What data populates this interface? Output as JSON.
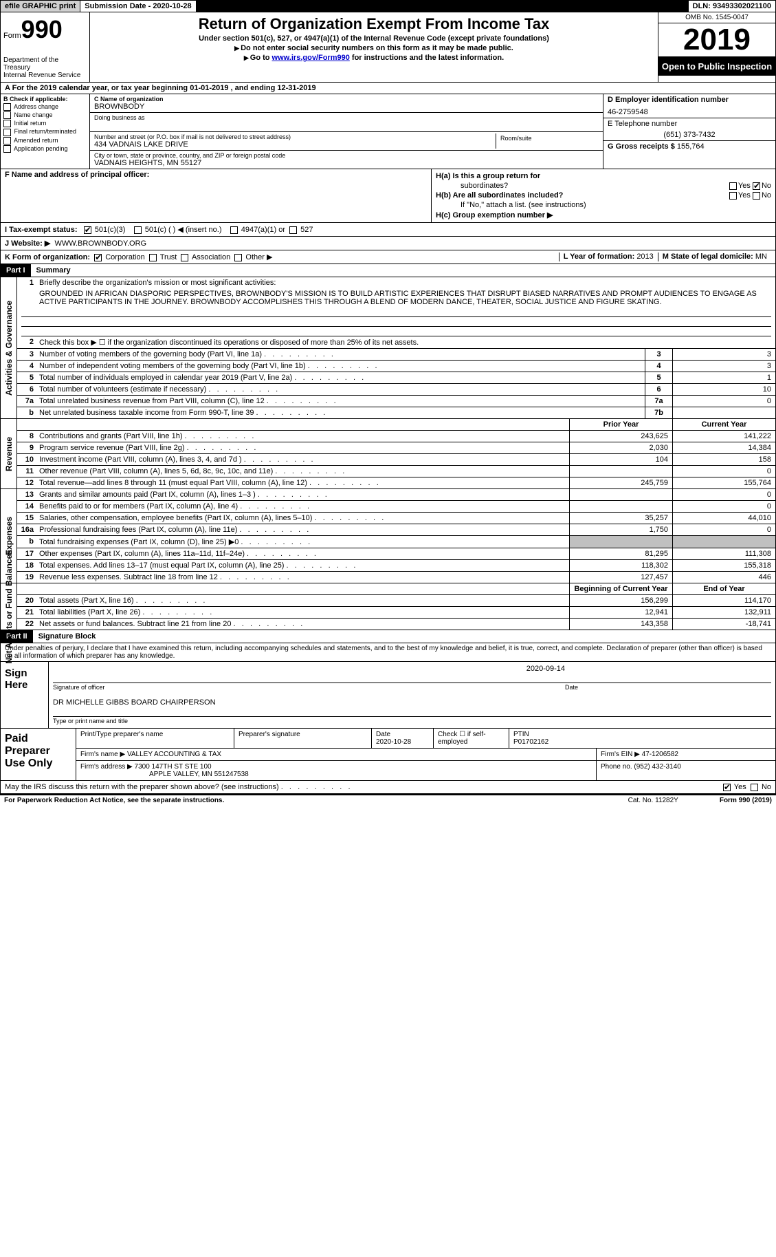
{
  "topbar": {
    "efile": "efile GRAPHIC print",
    "submission": "Submission Date - 2020-10-28",
    "dln": "DLN: 93493302021100"
  },
  "header": {
    "form_label": "Form",
    "form_num": "990",
    "dept": "Department of the Treasury\nInternal Revenue Service",
    "title": "Return of Organization Exempt From Income Tax",
    "subtitle": "Under section 501(c), 527, or 4947(a)(1) of the Internal Revenue Code (except private foundations)",
    "inst1": "Do not enter social security numbers on this form as it may be made public.",
    "inst2_pre": "Go to ",
    "inst2_link": "www.irs.gov/Form990",
    "inst2_post": " for instructions and the latest information.",
    "omb": "OMB No. 1545-0047",
    "year": "2019",
    "open": "Open to Public Inspection"
  },
  "period": {
    "a": "A",
    "text": "For the 2019 calendar year, or tax year beginning 01-01-2019    , and ending 12-31-2019"
  },
  "b": {
    "label": "B Check if applicable:",
    "items": [
      "Address change",
      "Name change",
      "Initial return",
      "Final return/terminated",
      "Amended return",
      "Application pending"
    ]
  },
  "c": {
    "name_label": "C Name of organization",
    "name": "BROWNBODY",
    "dba_label": "Doing business as",
    "dba": "",
    "addr_label": "Number and street (or P.O. box if mail is not delivered to street address)",
    "addr": "434 VADNAIS LAKE DRIVE",
    "room_label": "Room/suite",
    "city_label": "City or town, state or province, country, and ZIP or foreign postal code",
    "city": "VADNAIS HEIGHTS, MN   55127"
  },
  "d": {
    "ein_label": "D Employer identification number",
    "ein": "46-2759548",
    "phone_label": "E Telephone number",
    "phone": "(651) 373-7432",
    "gross_label": "G Gross receipts $",
    "gross": "155,764"
  },
  "f": {
    "label": "F  Name and address of principal officer:"
  },
  "h": {
    "ha": "H(a)  Is this a group return for",
    "ha2": "subordinates?",
    "hb": "H(b)  Are all subordinates included?",
    "hb2": "If \"No,\" attach a list. (see instructions)",
    "hc": "H(c)  Group exemption number ▶",
    "yes": "Yes",
    "no": "No"
  },
  "i": {
    "label": "I    Tax-exempt status:",
    "o1": "501(c)(3)",
    "o2": "501(c) (  ) ◀ (insert no.)",
    "o3": "4947(a)(1) or",
    "o4": "527"
  },
  "j": {
    "label": "J   Website: ▶",
    "val": "WWW.BROWNBODY.ORG"
  },
  "k": {
    "label": "K Form of organization:",
    "o1": "Corporation",
    "o2": "Trust",
    "o3": "Association",
    "o4": "Other ▶"
  },
  "l": {
    "label": "L Year of formation:",
    "val": "2013"
  },
  "m": {
    "label": "M State of legal domicile:",
    "val": "MN"
  },
  "part1": {
    "hdr": "Part I",
    "title": "Summary",
    "side_ag": "Activities & Governance",
    "side_rev": "Revenue",
    "side_exp": "Expenses",
    "side_na": "Net Assets or Fund Balances",
    "l1_label": "Briefly describe the organization's mission or most significant activities:",
    "l1_text": "GROUNDED IN AFRICAN DIASPORIC PERSPECTIVES, BROWNBODY'S MISSION IS TO BUILD ARTISTIC EXPERIENCES THAT DISRUPT BIASED NARRATIVES AND PROMPT AUDIENCES TO ENGAGE AS ACTIVE PARTICIPANTS IN THE JOURNEY. BROWNBODY ACCOMPLISHES THIS THROUGH A BLEND OF MODERN DANCE, THEATER, SOCIAL JUSTICE AND FIGURE SKATING.",
    "l2": "Check this box ▶ ☐  if the organization discontinued its operations or disposed of more than 25% of its net assets.",
    "prior": "Prior Year",
    "current": "Current Year",
    "boy": "Beginning of Current Year",
    "eoy": "End of Year",
    "lines_gov": [
      {
        "n": "3",
        "t": "Number of voting members of the governing body (Part VI, line 1a)",
        "box": "3",
        "v": "3"
      },
      {
        "n": "4",
        "t": "Number of independent voting members of the governing body (Part VI, line 1b)",
        "box": "4",
        "v": "3"
      },
      {
        "n": "5",
        "t": "Total number of individuals employed in calendar year 2019 (Part V, line 2a)",
        "box": "5",
        "v": "1"
      },
      {
        "n": "6",
        "t": "Total number of volunteers (estimate if necessary)",
        "box": "6",
        "v": "10"
      },
      {
        "n": "7a",
        "t": "Total unrelated business revenue from Part VIII, column (C), line 12",
        "box": "7a",
        "v": "0"
      },
      {
        "n": "b",
        "t": "Net unrelated business taxable income from Form 990-T, line 39",
        "box": "7b",
        "v": ""
      }
    ],
    "lines_rev": [
      {
        "n": "8",
        "t": "Contributions and grants (Part VIII, line 1h)",
        "p": "243,625",
        "c": "141,222"
      },
      {
        "n": "9",
        "t": "Program service revenue (Part VIII, line 2g)",
        "p": "2,030",
        "c": "14,384"
      },
      {
        "n": "10",
        "t": "Investment income (Part VIII, column (A), lines 3, 4, and 7d )",
        "p": "104",
        "c": "158"
      },
      {
        "n": "11",
        "t": "Other revenue (Part VIII, column (A), lines 5, 6d, 8c, 9c, 10c, and 11e)",
        "p": "",
        "c": "0"
      },
      {
        "n": "12",
        "t": "Total revenue—add lines 8 through 11 (must equal Part VIII, column (A), line 12)",
        "p": "245,759",
        "c": "155,764"
      }
    ],
    "lines_exp": [
      {
        "n": "13",
        "t": "Grants and similar amounts paid (Part IX, column (A), lines 1–3 )",
        "p": "",
        "c": "0"
      },
      {
        "n": "14",
        "t": "Benefits paid to or for members (Part IX, column (A), line 4)",
        "p": "",
        "c": "0"
      },
      {
        "n": "15",
        "t": "Salaries, other compensation, employee benefits (Part IX, column (A), lines 5–10)",
        "p": "35,257",
        "c": "44,010"
      },
      {
        "n": "16a",
        "t": "Professional fundraising fees (Part IX, column (A), line 11e)",
        "p": "1,750",
        "c": "0"
      },
      {
        "n": "b",
        "t": "Total fundraising expenses (Part IX, column (D), line 25) ▶0",
        "p": "SHADE",
        "c": "SHADE"
      },
      {
        "n": "17",
        "t": "Other expenses (Part IX, column (A), lines 11a–11d, 11f–24e)",
        "p": "81,295",
        "c": "111,308"
      },
      {
        "n": "18",
        "t": "Total expenses. Add lines 13–17 (must equal Part IX, column (A), line 25)",
        "p": "118,302",
        "c": "155,318"
      },
      {
        "n": "19",
        "t": "Revenue less expenses. Subtract line 18 from line 12",
        "p": "127,457",
        "c": "446"
      }
    ],
    "lines_na": [
      {
        "n": "20",
        "t": "Total assets (Part X, line 16)",
        "p": "156,299",
        "c": "114,170"
      },
      {
        "n": "21",
        "t": "Total liabilities (Part X, line 26)",
        "p": "12,941",
        "c": "132,911"
      },
      {
        "n": "22",
        "t": "Net assets or fund balances. Subtract line 21 from line 20",
        "p": "143,358",
        "c": "-18,741"
      }
    ]
  },
  "part2": {
    "hdr": "Part II",
    "title": "Signature Block",
    "decl": "Under penalties of perjury, I declare that I have examined this return, including accompanying schedules and statements, and to the best of my knowledge and belief, it is true, correct, and complete. Declaration of preparer (other than officer) is based on all information of which preparer has any knowledge.",
    "sign_here": "Sign Here",
    "sig_officer": "Signature of officer",
    "date": "Date",
    "date_val": "2020-09-14",
    "name_val": "DR MICHELLE GIBBS  BOARD CHAIRPERSON",
    "name_lbl": "Type or print name and title"
  },
  "prep": {
    "left": "Paid Preparer Use Only",
    "h1": "Print/Type preparer's name",
    "h2": "Preparer's signature",
    "h3": "Date",
    "h3v": "2020-10-28",
    "h4": "Check ☐ if self-employed",
    "h5": "PTIN",
    "h5v": "P01702162",
    "firm_name_l": "Firm's name    ▶",
    "firm_name": "VALLEY ACCOUNTING & TAX",
    "firm_ein_l": "Firm's EIN ▶",
    "firm_ein": "47-1206582",
    "firm_addr_l": "Firm's address ▶",
    "firm_addr1": "7300 147TH ST STE 100",
    "firm_addr2": "APPLE VALLEY, MN  551247538",
    "phone_l": "Phone no.",
    "phone": "(952) 432-3140"
  },
  "discuss": {
    "text": "May the IRS discuss this return with the preparer shown above? (see instructions)",
    "yes": "Yes",
    "no": "No"
  },
  "footer": {
    "left": "For Paperwork Reduction Act Notice, see the separate instructions.",
    "mid": "Cat. No. 11282Y",
    "right": "Form 990 (2019)"
  }
}
